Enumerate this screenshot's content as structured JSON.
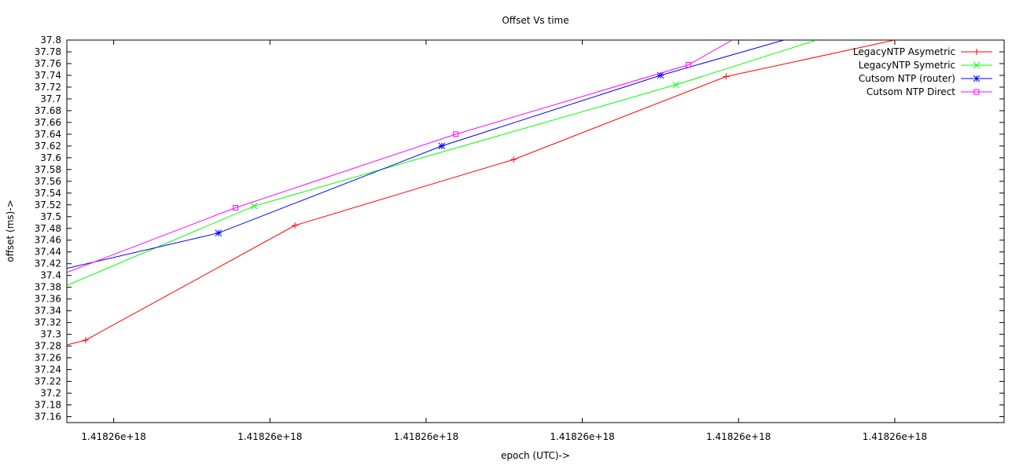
{
  "chart_data": {
    "type": "line",
    "title": "Offset Vs time",
    "xlabel": "epoch (UTC)->",
    "ylabel": "offset (ms)->",
    "xlim": [
      0,
      6
    ],
    "ylim": [
      37.15,
      37.8
    ],
    "grid": false,
    "legend_position": "top-right",
    "x_ticks": [
      {
        "value": 0.3,
        "label": "1.41826e+18"
      },
      {
        "value": 1.3,
        "label": "1.41826e+18"
      },
      {
        "value": 2.3,
        "label": "1.41826e+18"
      },
      {
        "value": 3.3,
        "label": "1.41826e+18"
      },
      {
        "value": 4.3,
        "label": "1.41826e+18"
      },
      {
        "value": 5.3,
        "label": "1.41826e+18"
      }
    ],
    "y_ticks": [
      {
        "value": 37.16,
        "label": "37.16"
      },
      {
        "value": 37.18,
        "label": "37.18"
      },
      {
        "value": 37.2,
        "label": "37.2"
      },
      {
        "value": 37.22,
        "label": "37.22"
      },
      {
        "value": 37.24,
        "label": "37.24"
      },
      {
        "value": 37.26,
        "label": "37.26"
      },
      {
        "value": 37.28,
        "label": "37.28"
      },
      {
        "value": 37.3,
        "label": "37.3"
      },
      {
        "value": 37.32,
        "label": "37.32"
      },
      {
        "value": 37.34,
        "label": "37.34"
      },
      {
        "value": 37.36,
        "label": "37.36"
      },
      {
        "value": 37.38,
        "label": "37.38"
      },
      {
        "value": 37.4,
        "label": "37.4"
      },
      {
        "value": 37.42,
        "label": "37.42"
      },
      {
        "value": 37.44,
        "label": "37.44"
      },
      {
        "value": 37.46,
        "label": "37.46"
      },
      {
        "value": 37.48,
        "label": "37.48"
      },
      {
        "value": 37.5,
        "label": "37.5"
      },
      {
        "value": 37.52,
        "label": "37.52"
      },
      {
        "value": 37.54,
        "label": "37.54"
      },
      {
        "value": 37.56,
        "label": "37.56"
      },
      {
        "value": 37.58,
        "label": "37.58"
      },
      {
        "value": 37.6,
        "label": "37.6"
      },
      {
        "value": 37.62,
        "label": "37.62"
      },
      {
        "value": 37.64,
        "label": "37.64"
      },
      {
        "value": 37.66,
        "label": "37.66"
      },
      {
        "value": 37.68,
        "label": "37.68"
      },
      {
        "value": 37.7,
        "label": "37.7"
      },
      {
        "value": 37.72,
        "label": "37.72"
      },
      {
        "value": 37.74,
        "label": "37.74"
      },
      {
        "value": 37.76,
        "label": "37.76"
      },
      {
        "value": 37.78,
        "label": "37.78"
      },
      {
        "value": 37.8,
        "label": "37.8"
      }
    ],
    "series": [
      {
        "name": "LegacyNTP Asymetric",
        "color": "#ff0000",
        "marker": "plus",
        "x": [
          0.0,
          0.12,
          1.46,
          2.86,
          4.22,
          5.3
        ],
        "y": [
          37.282,
          37.29,
          37.485,
          37.597,
          37.738,
          37.8
        ],
        "marked": [
          false,
          true,
          true,
          true,
          true,
          false
        ]
      },
      {
        "name": "LegacyNTP Symetric",
        "color": "#00ff00",
        "marker": "cross",
        "x": [
          0.0,
          1.2,
          3.9,
          4.8
        ],
        "y": [
          37.383,
          37.518,
          37.724,
          37.8
        ],
        "marked": [
          false,
          true,
          true,
          false
        ]
      },
      {
        "name": "Cutsom NTP (router)",
        "color": "#0000ff",
        "marker": "star",
        "x": [
          0.0,
          0.97,
          2.4,
          3.8,
          4.59
        ],
        "y": [
          37.412,
          37.472,
          37.62,
          37.74,
          37.8
        ],
        "marked": [
          false,
          true,
          true,
          true,
          false
        ]
      },
      {
        "name": "Cutsom NTP Direct",
        "color": "#ff00ff",
        "marker": "square",
        "x": [
          0.0,
          1.08,
          2.49,
          3.98,
          4.26
        ],
        "y": [
          37.405,
          37.515,
          37.64,
          37.758,
          37.8
        ],
        "marked": [
          false,
          true,
          true,
          true,
          false
        ]
      }
    ]
  }
}
